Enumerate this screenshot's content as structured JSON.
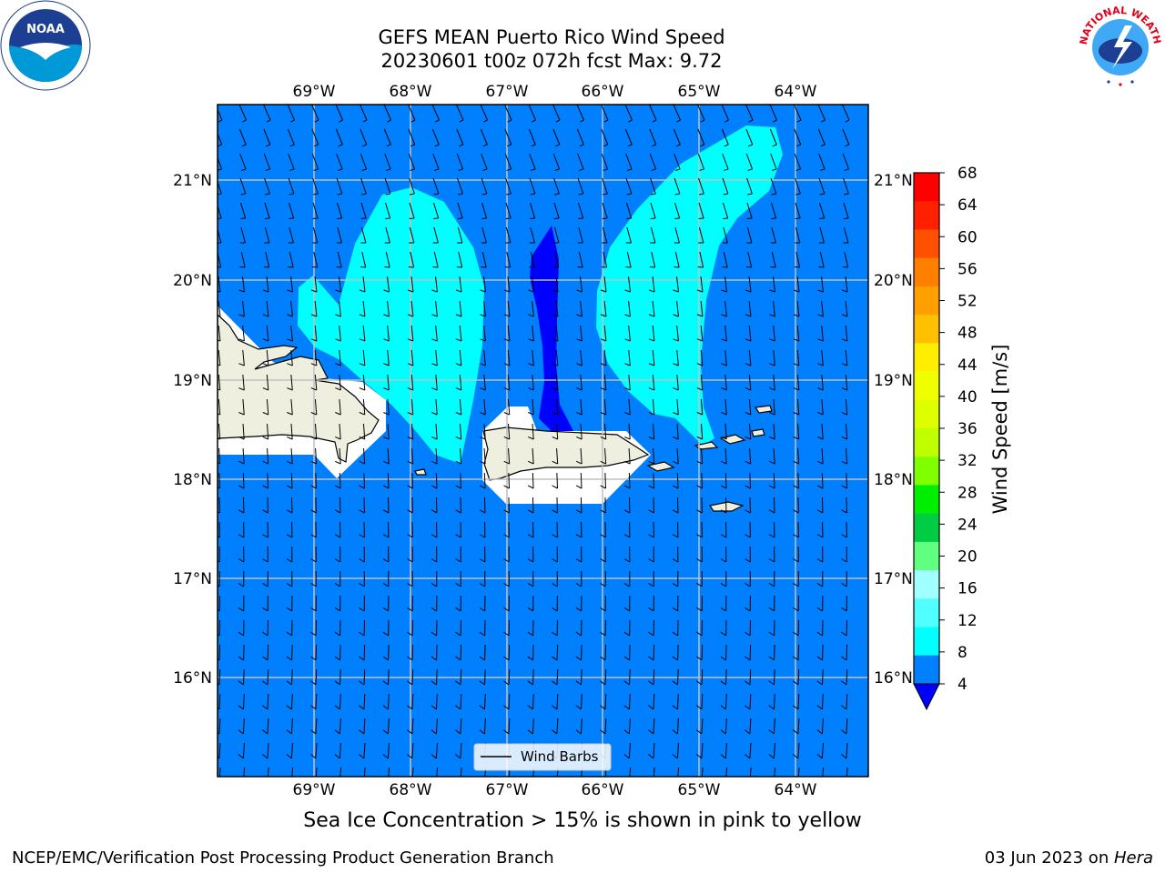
{
  "header": {
    "title_line1": "GEFS MEAN Puerto Rico Wind Speed",
    "title_line2": "20230601 t00z 072h fcst   Max: 9.72"
  },
  "map": {
    "lon_labels_top": [
      "69°W",
      "68°W",
      "67°W",
      "66°W",
      "65°W",
      "64°W"
    ],
    "lon_labels_bottom": [
      "69°W",
      "68°W",
      "67°W",
      "66°W",
      "65°W",
      "64°W"
    ],
    "lat_labels_left": [
      "21°N",
      "20°N",
      "19°N",
      "18°N",
      "17°N",
      "16°N"
    ],
    "lat_labels_right": [
      "21°N",
      "20°N",
      "19°N",
      "18°N",
      "17°N",
      "16°N"
    ],
    "legend_label": "Wind Barbs",
    "colors": {
      "ocean_base": "#0080ff",
      "wind_8_12": "#00ffff",
      "wind_below_4": "#0000ff",
      "land": "#efefdf",
      "grid": "#c0c0c0"
    }
  },
  "colorbar": {
    "label": "Wind Speed [m/s]",
    "ticks": [
      "68",
      "64",
      "60",
      "56",
      "52",
      "48",
      "44",
      "40",
      "36",
      "32",
      "28",
      "24",
      "20",
      "16",
      "12",
      "8",
      "4"
    ],
    "colors_top_to_bottom": [
      "#ff0000",
      "#ff2000",
      "#ff5000",
      "#ff8000",
      "#ffa000",
      "#ffc000",
      "#ffee00",
      "#f0ff00",
      "#ddff00",
      "#c0ff00",
      "#80ff00",
      "#00ee00",
      "#00cc44",
      "#60ff80",
      "#a0ffff",
      "#50ffff",
      "#00ffff",
      "#0080ff"
    ],
    "extend_color": "#0000ff"
  },
  "note": "Sea Ice Concentration > 15% is shown in pink to yellow",
  "footer": {
    "left": "NCEP/EMC/Verification Post Processing Product Generation Branch",
    "right_date": "03 Jun 2023 on ",
    "right_host": "Hera"
  },
  "logos": {
    "noaa_text": "NOAA",
    "nws_text": "NATIONAL WEATHER SERVICE"
  }
}
